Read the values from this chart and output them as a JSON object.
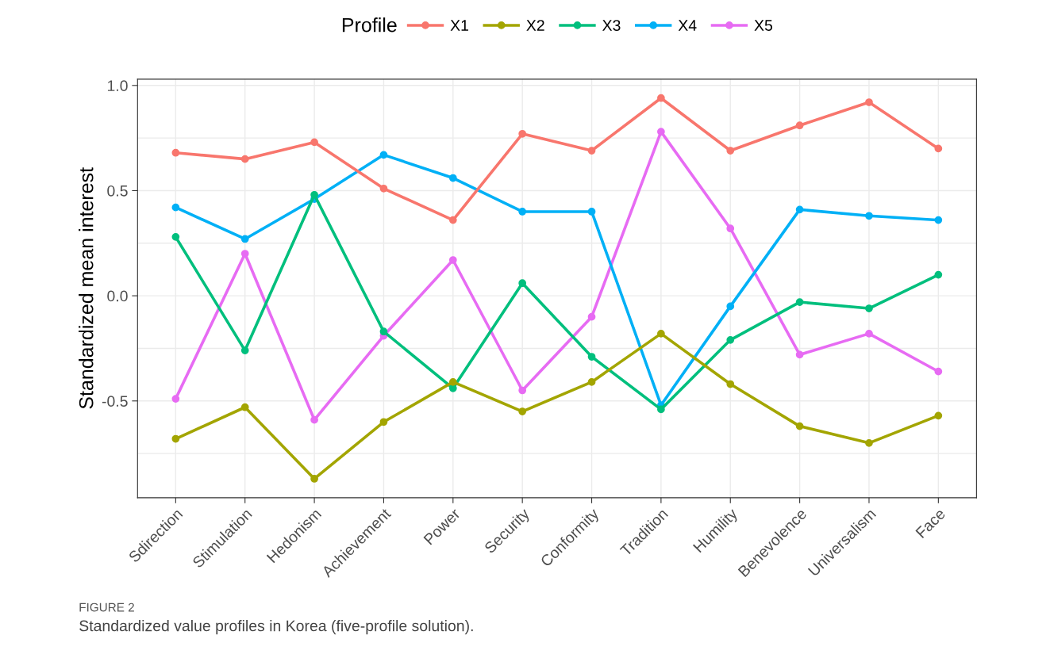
{
  "chart_data": {
    "type": "line",
    "categories": [
      "Sdirection",
      "Stimulation",
      "Hedonism",
      "Achievement",
      "Power",
      "Security",
      "Conformity",
      "Tradition",
      "Humility",
      "Benevolence",
      "Universalism",
      "Face"
    ],
    "series": [
      {
        "name": "X1",
        "color": "#f8766d",
        "values": [
          0.68,
          0.65,
          0.73,
          0.51,
          0.36,
          0.77,
          0.69,
          0.94,
          0.69,
          0.81,
          0.92,
          0.7
        ]
      },
      {
        "name": "X2",
        "color": "#a3a500",
        "values": [
          -0.68,
          -0.53,
          -0.87,
          -0.6,
          -0.41,
          -0.55,
          -0.41,
          -0.18,
          -0.42,
          -0.62,
          -0.7,
          -0.57
        ]
      },
      {
        "name": "X3",
        "color": "#00bf7d",
        "values": [
          0.28,
          -0.26,
          0.48,
          -0.17,
          -0.44,
          0.06,
          -0.29,
          -0.54,
          -0.21,
          -0.03,
          -0.06,
          0.1
        ]
      },
      {
        "name": "X4",
        "color": "#00b0f6",
        "values": [
          0.42,
          0.27,
          0.46,
          0.67,
          0.56,
          0.4,
          0.4,
          -0.52,
          -0.05,
          0.41,
          0.38,
          0.36
        ]
      },
      {
        "name": "X5",
        "color": "#e76bf3",
        "values": [
          -0.49,
          0.2,
          -0.59,
          -0.19,
          0.17,
          -0.45,
          -0.1,
          0.78,
          0.32,
          -0.28,
          -0.18,
          -0.36
        ]
      }
    ],
    "ylabel": "Standardized mean interest",
    "legend_title": "Profile",
    "legend": "top",
    "ylim": [
      -0.96,
      1.03
    ],
    "yticks": [
      {
        "value": -0.75,
        "label": null
      },
      {
        "value": -0.5,
        "label": "-0.5"
      },
      {
        "value": -0.25,
        "label": null
      },
      {
        "value": 0.0,
        "label": "0.0"
      },
      {
        "value": 0.25,
        "label": null
      },
      {
        "value": 0.5,
        "label": "0.5"
      },
      {
        "value": 0.75,
        "label": null
      },
      {
        "value": 1.0,
        "label": "1.0"
      }
    ],
    "grid": true,
    "marker": "circle",
    "line_style": "solid",
    "annotations": [
      "FIGURE 2",
      "Standardized value profiles in Korea (five-profile solution)."
    ]
  }
}
